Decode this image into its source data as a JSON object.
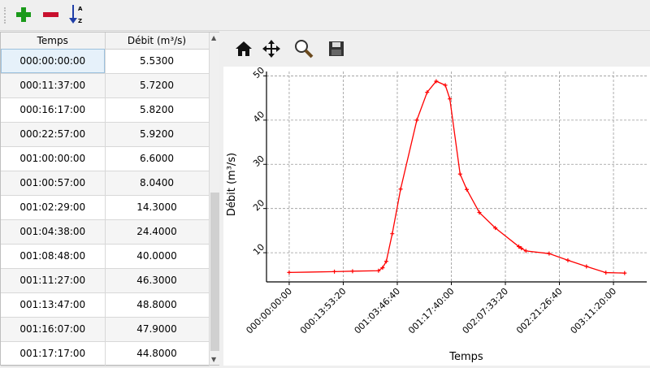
{
  "toolbar": {
    "icons": [
      "add-icon",
      "remove-icon",
      "sort-az-icon"
    ],
    "sort_letters_top": "A",
    "sort_letters_bottom": "Z",
    "colors": {
      "add": "#1a9a1a",
      "remove": "#c8102e",
      "sort": "#1f3ea8"
    }
  },
  "table": {
    "headers": [
      "Temps",
      "Débit (m³/s)"
    ],
    "rows": [
      [
        "000:00:00:00",
        "5.5300"
      ],
      [
        "000:11:37:00",
        "5.7200"
      ],
      [
        "000:16:17:00",
        "5.8200"
      ],
      [
        "000:22:57:00",
        "5.9200"
      ],
      [
        "001:00:00:00",
        "6.6000"
      ],
      [
        "001:00:57:00",
        "8.0400"
      ],
      [
        "001:02:29:00",
        "14.3000"
      ],
      [
        "001:04:38:00",
        "24.4000"
      ],
      [
        "001:08:48:00",
        "40.0000"
      ],
      [
        "001:11:27:00",
        "46.3000"
      ],
      [
        "001:13:47:00",
        "48.8000"
      ],
      [
        "001:16:07:00",
        "47.9000"
      ],
      [
        "001:17:17:00",
        "44.8000"
      ]
    ]
  },
  "plot_toolbar": {
    "icons": [
      "home-icon",
      "pan-icon",
      "zoom-icon",
      "save-icon"
    ]
  },
  "chart_data": {
    "type": "line",
    "xlabel": "Temps",
    "ylabel": "Débit (m³/s)",
    "x_ticks": [
      "000:00:00:00",
      "000:13:53:20",
      "001:03:46:40",
      "001:17:40:00",
      "002:07:33:20",
      "002:21:26:40",
      "003:11:20:00"
    ],
    "y_ticks": [
      10,
      20,
      30,
      40,
      50
    ],
    "xlim": [
      "-000:05:50:00",
      "003:19:53:00"
    ],
    "ylim": [
      3.4,
      51
    ],
    "grid": true,
    "color": "#ff0000",
    "marker": "+",
    "series": [
      {
        "x": [
          "000:00:00:00",
          "000:11:37:00",
          "000:16:17:00",
          "000:22:57:00",
          "001:00:00:00",
          "001:00:57:00",
          "001:02:29:00",
          "001:04:38:00",
          "001:08:48:00",
          "001:11:27:00",
          "001:13:47:00",
          "001:16:07:00",
          "001:17:17:00",
          "001:19:55:00",
          "001:21:38:00",
          "002:00:52:00",
          "002:04:58:00",
          "002:11:00:00",
          "002:11:40:00",
          "002:12:50:00",
          "002:18:48:00",
          "002:23:37:00",
          "003:04:23:00",
          "003:09:23:00",
          "003:14:12:00"
        ],
        "y": [
          5.53,
          5.72,
          5.82,
          5.92,
          6.6,
          8.04,
          14.3,
          24.4,
          40.0,
          46.3,
          48.8,
          47.9,
          44.8,
          27.8,
          24.3,
          19.1,
          15.6,
          11.4,
          11.0,
          10.4,
          9.8,
          8.3,
          6.9,
          5.5,
          5.4
        ]
      }
    ]
  }
}
